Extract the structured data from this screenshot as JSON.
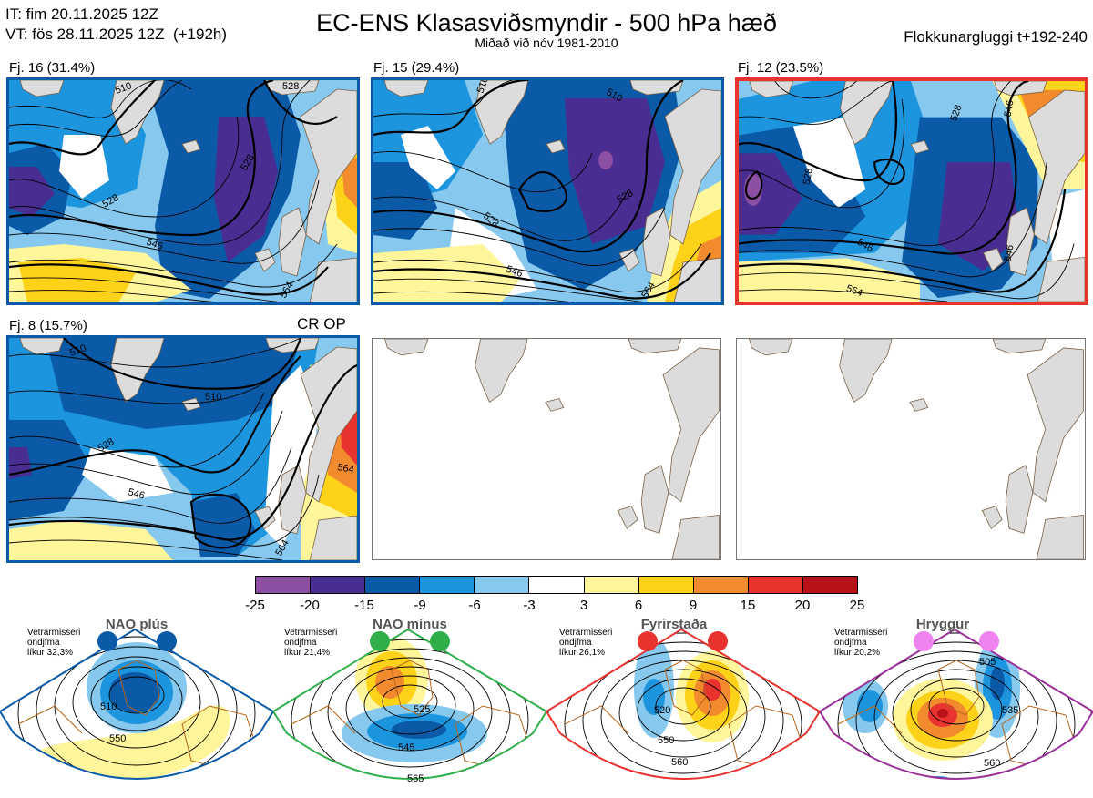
{
  "header": {
    "it_line": "IT: fim 20.11.2025 12Z",
    "vt_line": "VT: fös 28.11.2025 12Z  (+192h)",
    "title": "EC-ENS Klasasviðsmyndir - 500 hPa hæð",
    "subtitle": "Miðað við nóv 1981-2010",
    "window_label": "Flokkunargluggi t+192-240"
  },
  "panels": [
    {
      "label": "Fj. 16 (31.4%)",
      "border_color": "#0a5aa8",
      "contours": [
        "510",
        "528",
        "528",
        "546",
        "564",
        "528"
      ]
    },
    {
      "label": "Fj. 15 (29.4%)",
      "border_color": "#0a5aa8",
      "contours": [
        "510",
        "528",
        "528",
        "546",
        "564",
        "510"
      ]
    },
    {
      "label": "Fj. 12 (23.5%)",
      "border_color": "#e8332f",
      "contours": [
        "528",
        "528",
        "546",
        "546",
        "564",
        "546"
      ]
    },
    {
      "label": "Fj. 8 (15.7%)",
      "border_color": "#0a5aa8",
      "extra": "CR OP",
      "contours": [
        "510",
        "510",
        "528",
        "546",
        "564",
        "564"
      ]
    }
  ],
  "colorbar": {
    "ticks": [
      "-25",
      "-20",
      "-15",
      "-9",
      "-6",
      "-3",
      "3",
      "6",
      "9",
      "15",
      "20",
      "25"
    ],
    "colors": [
      "#8c4fa3",
      "#4a2d90",
      "#0a5aa8",
      "#1d95de",
      "#86c8ee",
      "#ffffff",
      "#fff59a",
      "#ffd21a",
      "#f28a2e",
      "#e8332f",
      "#b81118"
    ]
  },
  "regimes": [
    {
      "name": "NAO plús",
      "note": [
        "Vetrarmisseri",
        "ondjfma",
        "líkur 32,3%"
      ],
      "color": "#0a5aa8",
      "contours": [
        "510",
        "550"
      ]
    },
    {
      "name": "NAO mínus",
      "note": [
        "Vetrarmisseri",
        "ondjfma",
        "líkur 21,4%"
      ],
      "color": "#2fae4a",
      "contours": [
        "525",
        "545",
        "565"
      ]
    },
    {
      "name": "Fyrirstaða",
      "note": [
        "Vetrarmisseri",
        "ondjfma",
        "líkur 26,1%"
      ],
      "color": "#e8332f",
      "contours": [
        "520",
        "550",
        "560"
      ]
    },
    {
      "name": "Hryggur",
      "note": [
        "Vetrarmisseri",
        "ondjfma",
        "líkur 20,2%"
      ],
      "color": "#9a2f9a",
      "contours": [
        "505",
        "535",
        "560"
      ]
    }
  ]
}
